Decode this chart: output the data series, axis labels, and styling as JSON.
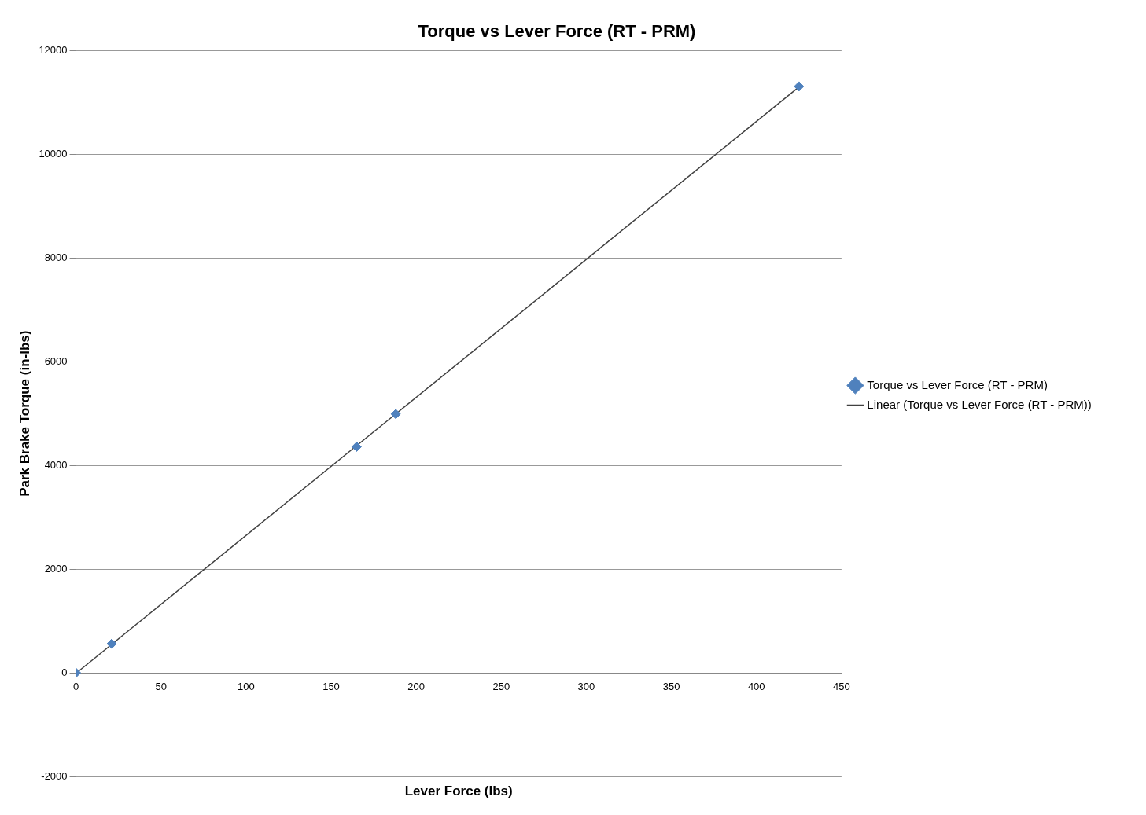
{
  "chart_data": {
    "type": "scatter",
    "title": "Torque vs Lever Force (RT - PRM)",
    "xlabel": "Lever Force (lbs)",
    "ylabel": "Park Brake Torque (in-lbs)",
    "xlim": [
      0,
      450
    ],
    "xticks": [
      0,
      50,
      100,
      150,
      200,
      250,
      300,
      350,
      400,
      450
    ],
    "ylim": [
      -2000,
      12000
    ],
    "yticks": [
      -2000,
      0,
      2000,
      4000,
      6000,
      8000,
      10000,
      12000
    ],
    "grid": "y",
    "legend": "right",
    "series": [
      {
        "name": "Torque vs Lever Force (RT - PRM)",
        "color": "#4f81bd",
        "marker": "diamond",
        "x": [
          0,
          21,
          165,
          188,
          425
        ],
        "values": [
          0,
          560,
          4360,
          4990,
          11310
        ]
      },
      {
        "name": "Linear (Torque vs Lever Force (RT - PRM))",
        "type": "line",
        "color": "#404040",
        "marker": "none",
        "line_style": "solid",
        "x": [
          0,
          425
        ],
        "values": [
          -10,
          11300
        ]
      }
    ]
  }
}
